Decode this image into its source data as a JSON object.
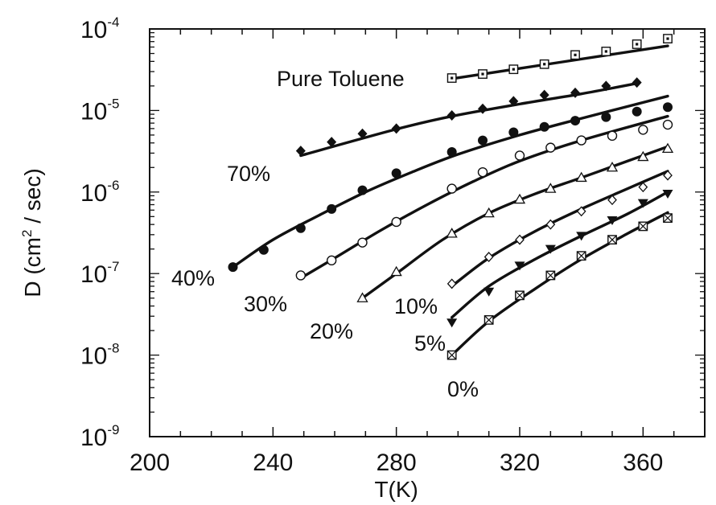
{
  "chart_data": {
    "type": "scatter",
    "title": "",
    "xlabel": "T(K)",
    "ylabel_parts": {
      "pre": "D (cm",
      "sup": "2",
      "post": " / sec)"
    },
    "xlim": [
      200,
      380
    ],
    "ylim": [
      1e-09,
      0.0001
    ],
    "yscale": "log",
    "x_ticks": [
      {
        "value": 200,
        "label": "200"
      },
      {
        "value": 240,
        "label": "240"
      },
      {
        "value": 280,
        "label": "280"
      },
      {
        "value": 320,
        "label": "320"
      },
      {
        "value": 360,
        "label": "360"
      }
    ],
    "y_ticks": [
      {
        "value": 1e-09,
        "base": "10",
        "exp": "-9"
      },
      {
        "value": 1e-08,
        "base": "10",
        "exp": "-8"
      },
      {
        "value": 1e-07,
        "base": "10",
        "exp": "-7"
      },
      {
        "value": 1e-06,
        "base": "10",
        "exp": "-6"
      },
      {
        "value": 1e-05,
        "base": "10",
        "exp": "-5"
      },
      {
        "value": 0.0001,
        "base": "10",
        "exp": "-4"
      }
    ],
    "grid": false,
    "series": [
      {
        "name": "Pure Toluene",
        "marker": "square-dot",
        "x": [
          298,
          308,
          318,
          328,
          338,
          348,
          358,
          368
        ],
        "y": [
          2.5e-05,
          2.8e-05,
          3.2e-05,
          3.7e-05,
          4.8e-05,
          5.3e-05,
          6.5e-05,
          7.6e-05
        ],
        "fit": {
          "x": [
            298,
            368
          ],
          "y": [
            2.45e-05,
            6.2e-05
          ]
        }
      },
      {
        "name": "70%",
        "marker": "diamond-filled",
        "x": [
          249,
          259,
          269,
          280,
          298,
          308,
          318,
          328,
          338,
          348,
          358
        ],
        "y": [
          3.2e-06,
          4.1e-06,
          5.2e-06,
          6e-06,
          8.7e-06,
          1.05e-05,
          1.3e-05,
          1.55e-05,
          1.65e-05,
          2e-05,
          2.2e-05
        ],
        "fit": {
          "x": [
            249,
            280,
            298,
            320,
            340,
            358
          ],
          "y": [
            2.8e-06,
            5.9e-06,
            8.5e-06,
            1.2e-05,
            1.6e-05,
            2.15e-05
          ]
        }
      },
      {
        "name": "40%",
        "marker": "circle-filled",
        "x": [
          227,
          237,
          249,
          259,
          269,
          280,
          298,
          308,
          318,
          328,
          338,
          348,
          358,
          368
        ],
        "y": [
          1.2e-07,
          1.95e-07,
          3.6e-07,
          6.2e-07,
          1.05e-06,
          1.7e-06,
          3.1e-06,
          4.3e-06,
          5.4e-06,
          6.3e-06,
          7.5e-06,
          8.3e-06,
          9.7e-06,
          1.1e-05
        ],
        "fit": {
          "x": [
            227,
            240,
            255,
            270,
            285,
            300,
            320,
            340,
            368
          ],
          "y": [
            1.2e-07,
            2.6e-07,
            5.2e-07,
            1e-06,
            1.75e-06,
            2.9e-06,
            5e-06,
            8e-06,
            1.5e-05
          ]
        }
      },
      {
        "name": "30%",
        "marker": "circle-open",
        "x": [
          249,
          259,
          269,
          280,
          298,
          308,
          320,
          330,
          340,
          350,
          360,
          368
        ],
        "y": [
          9.5e-08,
          1.45e-07,
          2.4e-07,
          4.3e-07,
          1.1e-06,
          1.75e-06,
          2.8e-06,
          3.5e-06,
          4.3e-06,
          4.9e-06,
          5.8e-06,
          6.7e-06
        ],
        "fit": {
          "x": [
            249,
            260,
            275,
            290,
            305,
            320,
            340,
            368
          ],
          "y": [
            8.8e-08,
            1.55e-07,
            3.4e-07,
            7e-07,
            1.35e-06,
            2.4e-06,
            4.3e-06,
            8.5e-06
          ]
        }
      },
      {
        "name": "20%",
        "marker": "triangle-open",
        "x": [
          269,
          280,
          298,
          310,
          320,
          330,
          340,
          350,
          360,
          368
        ],
        "y": [
          5e-08,
          1.05e-07,
          3.1e-07,
          5.5e-07,
          8.1e-07,
          1.1e-06,
          1.5e-06,
          2e-06,
          2.7e-06,
          3.4e-06
        ],
        "fit": {
          "x": [
            269,
            280,
            295,
            310,
            325,
            340,
            355,
            368
          ],
          "y": [
            5e-08,
            1e-07,
            2.6e-07,
            5.5e-07,
            9.5e-07,
            1.5e-06,
            2.4e-06,
            3.6e-06
          ]
        }
      },
      {
        "name": "10%",
        "marker": "diamond-open",
        "x": [
          298,
          310,
          320,
          330,
          340,
          350,
          360,
          368
        ],
        "y": [
          7.5e-08,
          1.6e-07,
          2.6e-07,
          4e-07,
          5.8e-07,
          8e-07,
          1.15e-06,
          1.6e-06
        ],
        "fit": {
          "x": [
            298,
            310,
            325,
            340,
            355,
            368
          ],
          "y": [
            7e-08,
            1.55e-07,
            3.3e-07,
            6.2e-07,
            1.1e-06,
            1.8e-06
          ]
        }
      },
      {
        "name": "5%",
        "marker": "triangle-down-filled",
        "x": [
          298,
          310,
          320,
          330,
          340,
          350,
          360,
          368
        ],
        "y": [
          2.5e-08,
          6e-08,
          1.25e-07,
          2e-07,
          2.9e-07,
          4.5e-07,
          7.3e-07,
          9.5e-07
        ],
        "fit": {
          "x": [
            298,
            310,
            325,
            340,
            355,
            368
          ],
          "y": [
            2.9e-08,
            7e-08,
            1.5e-07,
            2.9e-07,
            5.4e-07,
            1e-06
          ]
        }
      },
      {
        "name": "0%",
        "marker": "square-cross",
        "x": [
          298,
          310,
          320,
          330,
          340,
          350,
          360,
          368
        ],
        "y": [
          1e-08,
          2.7e-08,
          5.4e-08,
          9.5e-08,
          1.65e-07,
          2.6e-07,
          3.8e-07,
          4.8e-07
        ],
        "fit": {
          "x": [
            298,
            310,
            325,
            340,
            355,
            368
          ],
          "y": [
            1e-08,
            2.6e-08,
            6.5e-08,
            1.5e-07,
            3.1e-07,
            5.6e-07
          ]
        }
      }
    ]
  }
}
